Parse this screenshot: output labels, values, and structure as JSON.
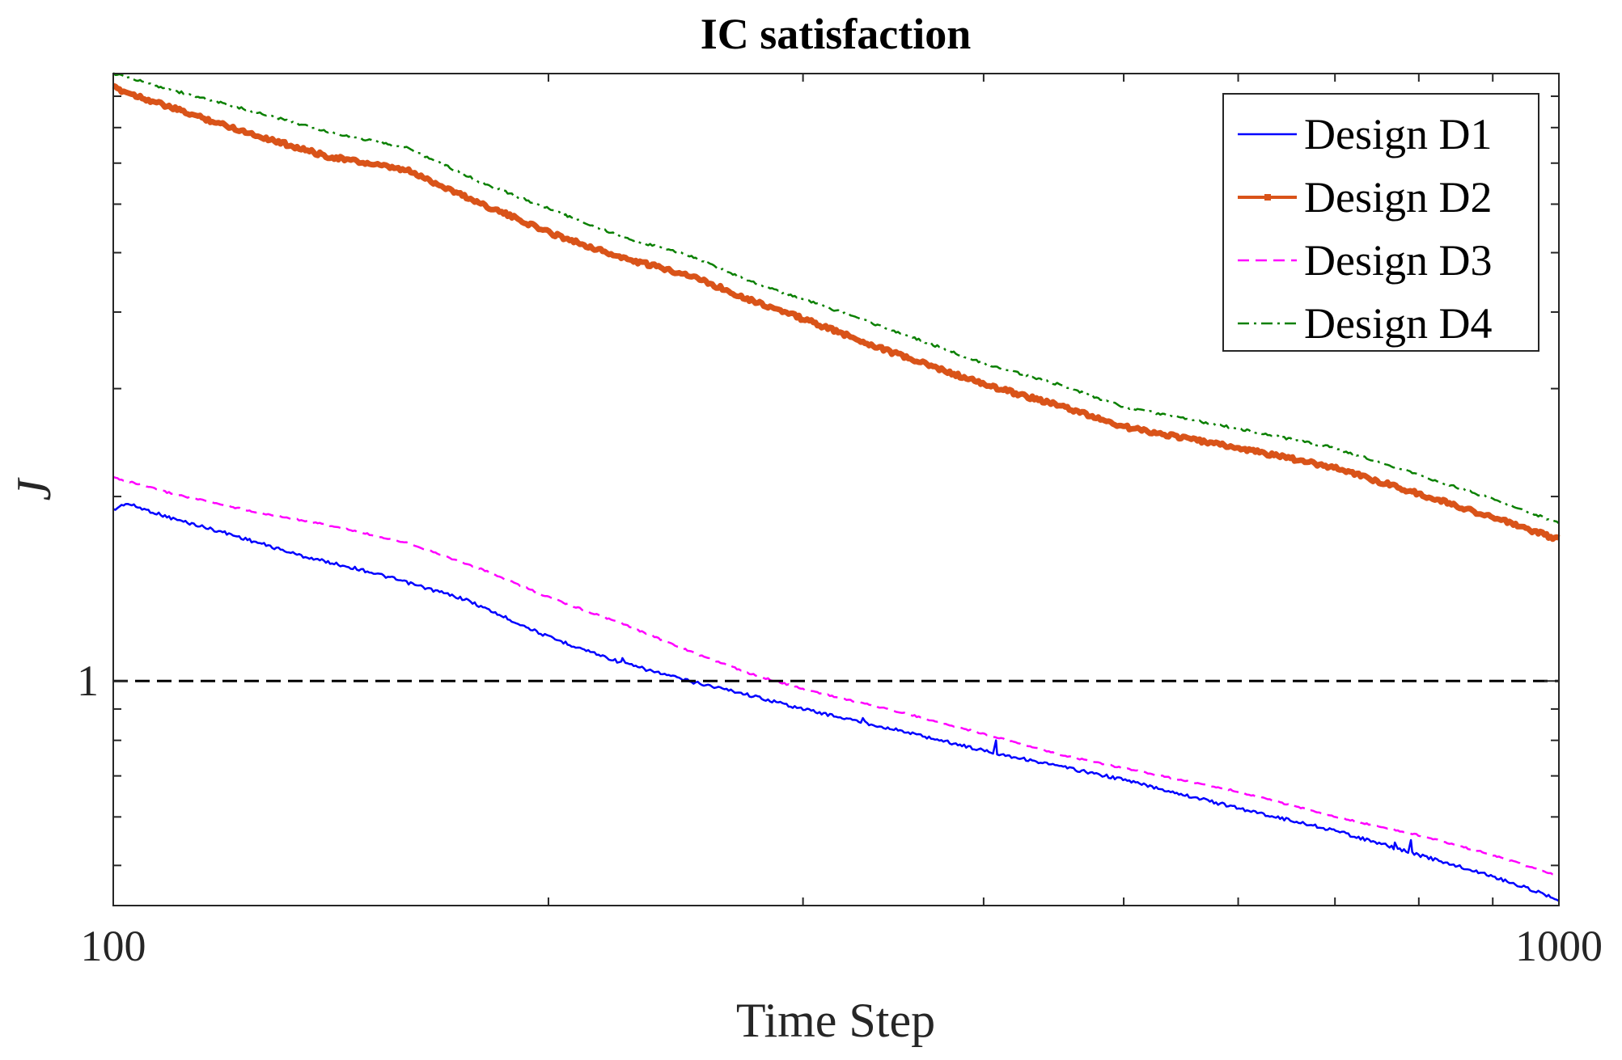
{
  "chart_data": {
    "type": "line",
    "title": "IC satisfaction",
    "xlabel": "Time Step",
    "ylabel": "J",
    "xscale": "log",
    "yscale": "log",
    "xlim": [
      100,
      1000
    ],
    "ylim": [
      0.43,
      9.8
    ],
    "x_tick_labels": [
      {
        "value": 100,
        "label": "100"
      },
      {
        "value": 1000,
        "label": "1000"
      }
    ],
    "y_tick_labels": [
      {
        "value": 1,
        "label": "1"
      }
    ],
    "grid": false,
    "legend_position": "top-right",
    "reference_line": {
      "y": 1,
      "color": "#000000",
      "style": "dashed"
    },
    "series": [
      {
        "name": "Design D1",
        "color": "#0000ff",
        "style": "solid",
        "x": [
          100,
          102,
          110,
          120,
          135,
          150,
          175,
          200,
          225,
          250,
          270,
          300,
          350,
          400,
          500,
          600,
          700,
          800,
          900,
          1000
        ],
        "values": [
          1.9,
          1.95,
          1.84,
          1.74,
          1.6,
          1.51,
          1.36,
          1.18,
          1.07,
          1.0,
          0.96,
          0.9,
          0.83,
          0.77,
          0.69,
          0.62,
          0.57,
          0.52,
          0.48,
          0.44
        ],
        "spikes": [
          {
            "x": 225,
            "y": 1.09
          },
          {
            "x": 330,
            "y": 0.87
          },
          {
            "x": 408,
            "y": 0.8
          },
          {
            "x": 770,
            "y": 0.545
          },
          {
            "x": 790,
            "y": 0.55
          }
        ]
      },
      {
        "name": "Design D2",
        "color": "#d95319",
        "style": "solid-marker",
        "x": [
          100,
          110,
          125,
          140,
          160,
          180,
          200,
          225,
          250,
          275,
          300,
          350,
          400,
          450,
          500,
          600,
          700,
          800,
          900,
          1000
        ],
        "values": [
          9.3,
          8.6,
          7.8,
          7.2,
          6.8,
          6.0,
          5.4,
          4.9,
          4.6,
          4.2,
          3.9,
          3.4,
          3.05,
          2.82,
          2.6,
          2.4,
          2.23,
          2.02,
          1.85,
          1.7
        ]
      },
      {
        "name": "Design D3",
        "color": "#ff00ff",
        "style": "dashed",
        "x": [
          100,
          110,
          125,
          140,
          160,
          180,
          200,
          225,
          250,
          275,
          300,
          350,
          400,
          450,
          500,
          600,
          700,
          800,
          900,
          1000
        ],
        "values": [
          2.15,
          2.02,
          1.89,
          1.8,
          1.68,
          1.52,
          1.37,
          1.24,
          1.12,
          1.03,
          0.97,
          0.89,
          0.82,
          0.76,
          0.72,
          0.66,
          0.6,
          0.56,
          0.52,
          0.48
        ]
      },
      {
        "name": "Design D4",
        "color": "#0a8000",
        "style": "dash-dot",
        "x": [
          100,
          110,
          125,
          140,
          160,
          180,
          200,
          225,
          250,
          275,
          300,
          350,
          400,
          450,
          500,
          600,
          700,
          800,
          900,
          1000
        ],
        "values": [
          9.8,
          9.2,
          8.5,
          7.9,
          7.4,
          6.5,
          5.9,
          5.3,
          4.95,
          4.5,
          4.2,
          3.7,
          3.3,
          3.05,
          2.8,
          2.58,
          2.4,
          2.17,
          1.98,
          1.81
        ]
      }
    ]
  }
}
